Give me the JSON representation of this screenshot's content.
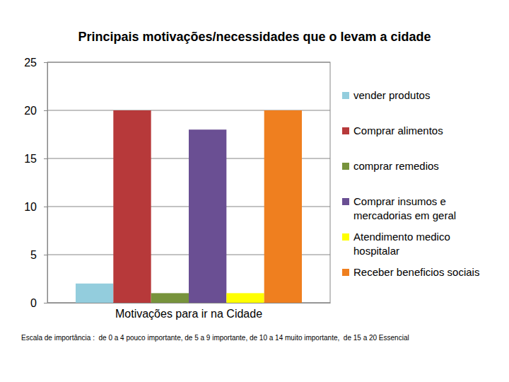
{
  "chart_data": {
    "type": "bar",
    "title": "Principais motivações/necessidades que o levam a cidade",
    "categories": [
      "Motivações para ir na Cidade"
    ],
    "series": [
      {
        "name": "vender produtos",
        "color": "#93cddd",
        "values": [
          2
        ]
      },
      {
        "name": "Comprar alimentos",
        "color": "#b7393a",
        "values": [
          20
        ]
      },
      {
        "name": "comprar remedios",
        "color": "#77933c",
        "values": [
          1
        ]
      },
      {
        "name": "Comprar insumos e mercadorias em geral",
        "color": "#6a4f93",
        "values": [
          18
        ]
      },
      {
        "name": "Atendimento medico hospitalar",
        "color": "#ffff00",
        "values": [
          1
        ]
      },
      {
        "name": "Receber beneficios sociais",
        "color": "#ef7f1f",
        "values": [
          20
        ]
      }
    ],
    "ylim": [
      0,
      25
    ],
    "yticks": [
      0,
      5,
      10,
      15,
      20,
      25
    ],
    "grid": true,
    "legend": "right",
    "annotations": [
      "Escala de importância :  de 0 a 4 pouco importante, de 5 a 9 importante, de 10 a 14 muito importante,  de 15 a 20 Essencial"
    ]
  }
}
